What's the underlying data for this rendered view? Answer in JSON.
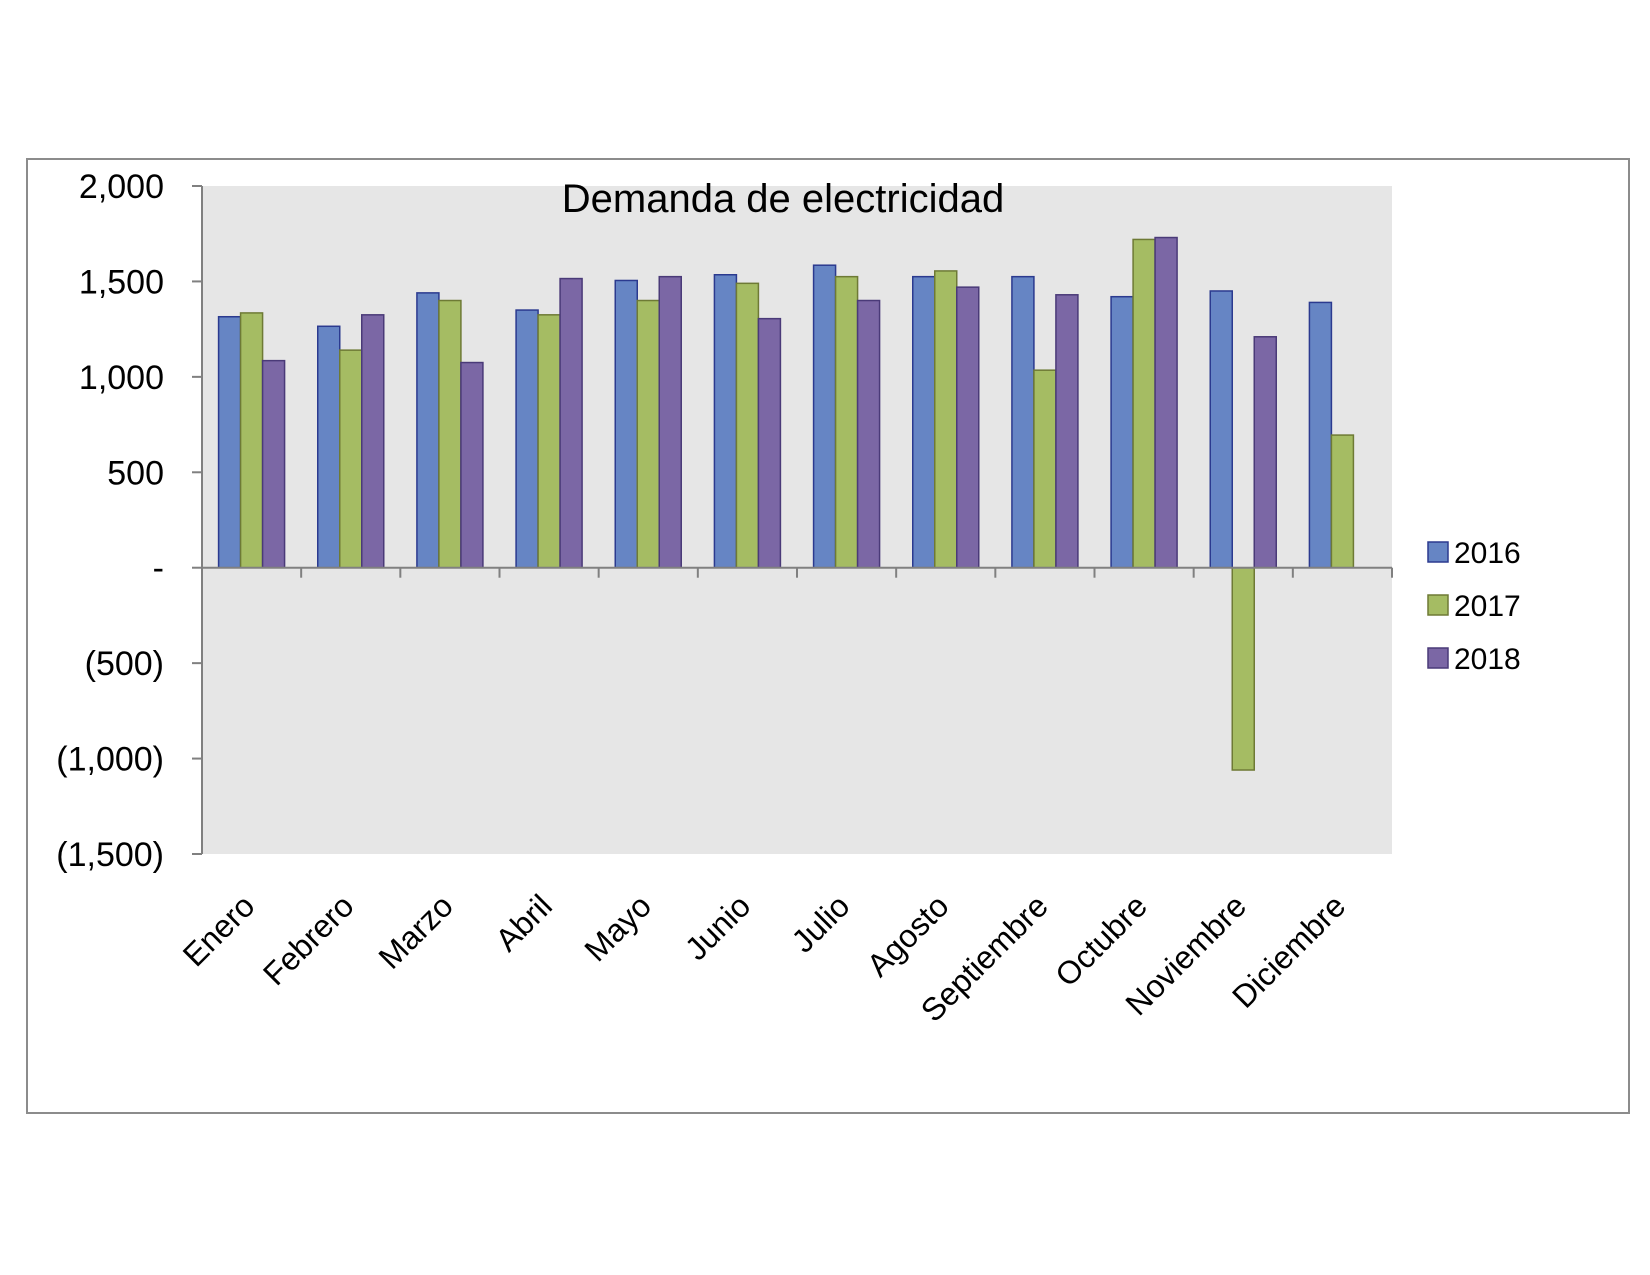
{
  "chart_data": {
    "type": "bar",
    "title": "Demanda de electricidad",
    "xlabel": "",
    "ylabel": "",
    "ylim": [
      -1500,
      2000
    ],
    "yticks": [
      2000,
      1500,
      1000,
      500,
      0,
      -500,
      -1000,
      -1500
    ],
    "ytick_labels": [
      "2,000",
      "1,500",
      "1,000",
      "500",
      "-",
      "(500)",
      "(1,000)",
      "(1,500)"
    ],
    "categories": [
      "Enero",
      "Febrero",
      "Marzo",
      "Abril",
      "Mayo",
      "Junio",
      "Julio",
      "Agosto",
      "Septiembre",
      "Octubre",
      "Noviembre",
      "Diciembre"
    ],
    "series": [
      {
        "name": "2016",
        "color": "#6685C4",
        "values": [
          1315,
          1265,
          1440,
          1350,
          1505,
          1535,
          1585,
          1525,
          1525,
          1420,
          1450,
          1390
        ]
      },
      {
        "name": "2017",
        "color": "#A5BC63",
        "values": [
          1335,
          1140,
          1400,
          1325,
          1400,
          1490,
          1525,
          1555,
          1035,
          1720,
          -1060,
          695
        ]
      },
      {
        "name": "2018",
        "color": "#7B67A5",
        "values": [
          1085,
          1325,
          1075,
          1515,
          1525,
          1305,
          1400,
          1470,
          1430,
          1730,
          1210,
          null
        ]
      }
    ],
    "grid": false,
    "legend_position": "right",
    "plot_background": "#E6E6E6"
  }
}
